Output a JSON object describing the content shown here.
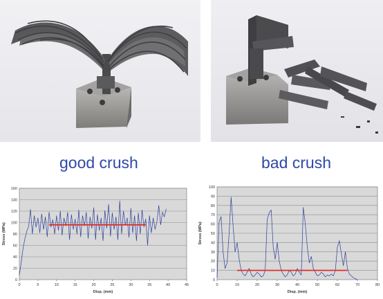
{
  "captions": {
    "good": "good crush",
    "bad": "bad crush"
  },
  "colors": {
    "caption": "#2e48a8",
    "trace": "#2b3f9a",
    "mean_line": "#e0302a",
    "plot_bg": "#d9d9d9",
    "grid": "#8c8c8c"
  },
  "photos": [
    {
      "name": "good-crush-photo",
      "subject": "fractured composite tube splayed outward on a metal base block"
    },
    {
      "name": "bad-crush-photo",
      "subject": "broken composite plates scattered beside a metal base block"
    }
  ],
  "chart_data": [
    {
      "type": "line",
      "title": "",
      "xlabel": "Disp. (mm)",
      "ylabel": "Stress (MPa)",
      "xlim": [
        0,
        45
      ],
      "ylim": [
        0,
        160
      ],
      "xticks": [
        0,
        5,
        10,
        15,
        20,
        25,
        30,
        35,
        40,
        45
      ],
      "yticks": [
        0,
        20,
        40,
        60,
        80,
        100,
        120,
        140,
        160
      ],
      "grid": true,
      "series": [
        {
          "x": [
            0,
            0.5,
            1,
            1.5,
            2,
            2.5,
            3,
            3.5,
            4,
            4.5,
            5,
            5.5,
            6,
            6.5,
            7,
            7.5,
            8,
            8.5,
            9,
            9.5,
            10,
            10.5,
            11,
            11.5,
            12,
            12.5,
            13,
            13.5,
            14,
            14.5,
            15,
            15.5,
            16,
            16.5,
            17,
            17.5,
            18,
            18.5,
            19,
            19.5,
            20,
            20.5,
            21,
            21.5,
            22,
            22.5,
            23,
            23.5,
            24,
            24.5,
            25,
            25.5,
            26,
            26.5,
            27,
            27.5,
            28,
            28.5,
            29,
            29.5,
            30,
            30.5,
            31,
            31.5,
            32,
            32.5,
            33,
            33.5,
            34,
            34.5,
            35,
            35.5,
            36,
            36.5,
            37,
            37.5,
            38,
            38.5,
            39,
            39.5
          ],
          "y": [
            8,
            30,
            55,
            72,
            85,
            93,
            123,
            80,
            112,
            92,
            108,
            82,
            115,
            88,
            110,
            75,
            118,
            92,
            105,
            80,
            112,
            86,
            120,
            78,
            108,
            94,
            118,
            70,
            114,
            88,
            106,
            80,
            122,
            75,
            112,
            94,
            118,
            72,
            110,
            90,
            126,
            70,
            114,
            86,
            108,
            68,
            121,
            90,
            132,
            76,
            117,
            88,
            110,
            70,
            138,
            80,
            120,
            95,
            108,
            74,
            125,
            82,
            112,
            68,
            117,
            80,
            122,
            92,
            106,
            60,
            112,
            82,
            108,
            88,
            102,
            130,
            96,
            118,
            110,
            124
          ]
        },
        {
          "name": "average",
          "x": [
            8,
            34
          ],
          "y": [
            96,
            96
          ]
        }
      ]
    },
    {
      "type": "line",
      "title": "",
      "xlabel": "Disp. (mm)",
      "ylabel": "Stress (MPa)",
      "xlim": [
        0,
        80
      ],
      "ylim": [
        0,
        100
      ],
      "xticks": [
        0,
        10,
        20,
        30,
        40,
        50,
        60,
        70,
        80
      ],
      "yticks": [
        0,
        10,
        20,
        30,
        40,
        50,
        60,
        70,
        80,
        90,
        100
      ],
      "grid": true,
      "series": [
        {
          "x": [
            0,
            1,
            2,
            3,
            4,
            5,
            6,
            7,
            8,
            9,
            10,
            11,
            12,
            13,
            14,
            15,
            16,
            17,
            18,
            19,
            20,
            21,
            22,
            23,
            24,
            25,
            26,
            27,
            28,
            29,
            30,
            31,
            32,
            33,
            34,
            35,
            36,
            37,
            38,
            39,
            40,
            41,
            42,
            43,
            44,
            45,
            46,
            47,
            48,
            49,
            50,
            51,
            52,
            53,
            54,
            55,
            56,
            57,
            58,
            59,
            60,
            61,
            62,
            63,
            64,
            65,
            66,
            67,
            68,
            69,
            70
          ],
          "y": [
            2,
            62,
            68,
            30,
            12,
            18,
            50,
            89,
            58,
            30,
            40,
            22,
            10,
            6,
            4,
            8,
            12,
            6,
            3,
            5,
            8,
            6,
            3,
            4,
            10,
            65,
            72,
            75,
            35,
            22,
            40,
            20,
            10,
            6,
            3,
            5,
            10,
            8,
            4,
            6,
            12,
            8,
            5,
            78,
            60,
            35,
            18,
            25,
            12,
            8,
            4,
            5,
            8,
            6,
            3,
            5,
            4,
            6,
            4,
            10,
            35,
            42,
            28,
            15,
            30,
            12,
            6,
            4,
            2,
            1,
            0
          ]
        },
        {
          "name": "average",
          "x": [
            10,
            65
          ],
          "y": [
            10,
            10
          ]
        }
      ]
    }
  ]
}
